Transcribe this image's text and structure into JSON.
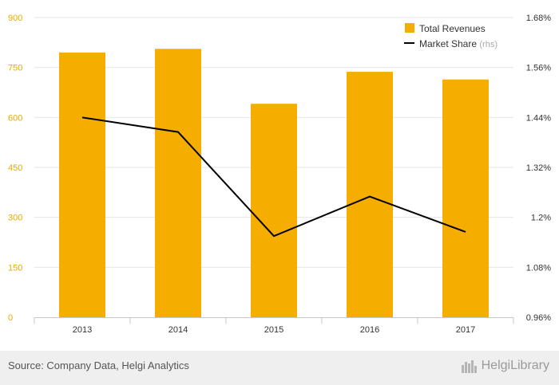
{
  "chart_data": {
    "type": "bar",
    "categories": [
      "2013",
      "2014",
      "2015",
      "2016",
      "2017"
    ],
    "series": [
      {
        "name": "Total Revenues",
        "kind": "bar",
        "axis": "left",
        "color": "#f5ae00",
        "values": [
          795,
          806,
          641,
          737,
          714
        ]
      },
      {
        "name": "Market Share",
        "name_suffix": "(rhs)",
        "kind": "line",
        "axis": "right",
        "color": "#000000",
        "values": [
          1.44,
          1.405,
          1.155,
          1.25,
          1.165
        ]
      }
    ],
    "left_axis": {
      "ticks": [
        "0",
        "150",
        "300",
        "450",
        "600",
        "750",
        "900"
      ],
      "range": [
        0,
        900
      ]
    },
    "right_axis": {
      "ticks": [
        "0.96%",
        "1.08%",
        "1.2%",
        "1.32%",
        "1.44%",
        "1.56%",
        "1.68%"
      ],
      "range": [
        0.96,
        1.68
      ]
    },
    "grid": true,
    "legend_position": "top-right"
  },
  "footer": {
    "source": "Source: Company Data, Helgi Analytics",
    "brand": "HelgiLibrary"
  }
}
